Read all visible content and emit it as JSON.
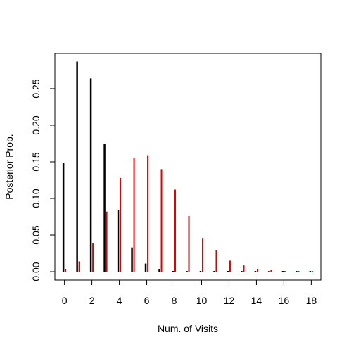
{
  "chart_data": {
    "type": "bar",
    "title": "",
    "xlabel": "Num. of Visits",
    "ylabel": "Posterior Prob.",
    "x": [
      0,
      1,
      2,
      3,
      4,
      5,
      6,
      7,
      8,
      9,
      10,
      11,
      12,
      13,
      14,
      15,
      16,
      17,
      18
    ],
    "xticks": [
      "0",
      "2",
      "4",
      "6",
      "8",
      "10",
      "12",
      "14",
      "16",
      "18"
    ],
    "xtick_values": [
      0,
      2,
      4,
      6,
      8,
      10,
      12,
      14,
      16,
      18
    ],
    "yticks": [
      "0.00",
      "0.05",
      "0.10",
      "0.15",
      "0.20",
      "0.25"
    ],
    "ytick_values": [
      0.0,
      0.05,
      0.1,
      0.15,
      0.2,
      0.25
    ],
    "xlim": [
      -0.7,
      18.7
    ],
    "ylim": [
      -0.0115,
      0.298
    ],
    "grid": false,
    "series": [
      {
        "color": "#000000",
        "values": [
          0.148,
          0.287,
          0.264,
          0.175,
          0.084,
          0.033,
          0.011,
          0.003,
          0.001,
          0.0002,
          0,
          0,
          0,
          0,
          0,
          0,
          0,
          0,
          0
        ]
      },
      {
        "color": "#e00000",
        "values": [
          0.003,
          0.014,
          0.039,
          0.082,
          0.128,
          0.155,
          0.159,
          0.14,
          0.112,
          0.076,
          0.046,
          0.029,
          0.015,
          0.009,
          0.004,
          0.002,
          0.001,
          0.0005,
          0.0002
        ]
      }
    ]
  }
}
